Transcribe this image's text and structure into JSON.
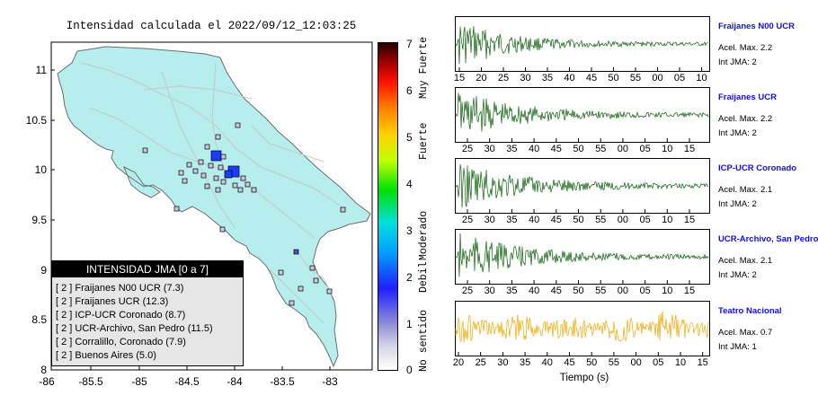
{
  "map": {
    "title": "Intensidad calculada el 2022/09/12_12:03:25",
    "lat_ticks": [
      "11",
      "10.5",
      "10",
      "9.5",
      "9",
      "8.5",
      "8"
    ],
    "lon_ticks": [
      "-86",
      "-85.5",
      "-85",
      "-84.5",
      "-84",
      "-83.5",
      "-83"
    ]
  },
  "colorbar": {
    "ticks": [
      "7",
      "6",
      "5",
      "4",
      "3",
      "2",
      "1",
      "0"
    ],
    "labels": [
      "Muy Fuerte",
      "Fuerte",
      "Moderado",
      "Debil",
      "No sentido"
    ]
  },
  "legend": {
    "title": "INTENSIDAD JMA [0 a 7]",
    "rows": [
      "[ 2 ]  Fraijanes N00 UCR (7.3)",
      "[ 2 ]  Fraijanes UCR (12.3)",
      "[ 2 ]  ICP-UCR Coronado (8.7)",
      "[ 2 ]  UCR-Archivo, San Pedro (11.5)",
      "[ 2 ]  Corralillo, Coronado (7.9)",
      "[ 2 ]  Buenos Aires (5.0)"
    ]
  },
  "traces": [
    {
      "title": "Fraijanes N00 UCR",
      "accel": "Acel. Max. 2.2",
      "int": "Int JMA: 2",
      "color": "#0a5f0a",
      "ticks": [
        "15",
        "20",
        "25",
        "30",
        "35",
        "40",
        "45",
        "50",
        "55",
        "00",
        "05",
        "10"
      ]
    },
    {
      "title": "Fraijanes UCR",
      "accel": "Acel. Max. 2.2",
      "int": "Int JMA: 2",
      "color": "#0a5f0a",
      "ticks": [
        "25",
        "30",
        "35",
        "40",
        "45",
        "50",
        "55",
        "00",
        "05",
        "10",
        "15",
        "20"
      ]
    },
    {
      "title": "ICP-UCR Coronado",
      "accel": "Acel. Max. 2.1",
      "int": "Int JMA: 2",
      "color": "#0a5f0a",
      "ticks": [
        "25",
        "30",
        "35",
        "40",
        "45",
        "50",
        "55",
        "00",
        "05",
        "10",
        "15",
        "20"
      ]
    },
    {
      "title": "UCR-Archivo, San Pedro",
      "accel": "Acel. Max. 2.1",
      "int": "Int JMA: 2",
      "color": "#0a5f0a",
      "ticks": [
        "25",
        "30",
        "35",
        "40",
        "45",
        "50",
        "55",
        "00",
        "05",
        "10",
        "15",
        "20"
      ]
    },
    {
      "title": "Teatro Nacional",
      "accel": "Acel. Max. 0.7",
      "int": "Int JMA: 1",
      "color": "#f0a800",
      "ticks": [
        "20",
        "25",
        "30",
        "35",
        "40",
        "45",
        "50",
        "55",
        "00",
        "05",
        "10",
        "15"
      ]
    }
  ],
  "x_axis_label": "Tiempo (s)"
}
